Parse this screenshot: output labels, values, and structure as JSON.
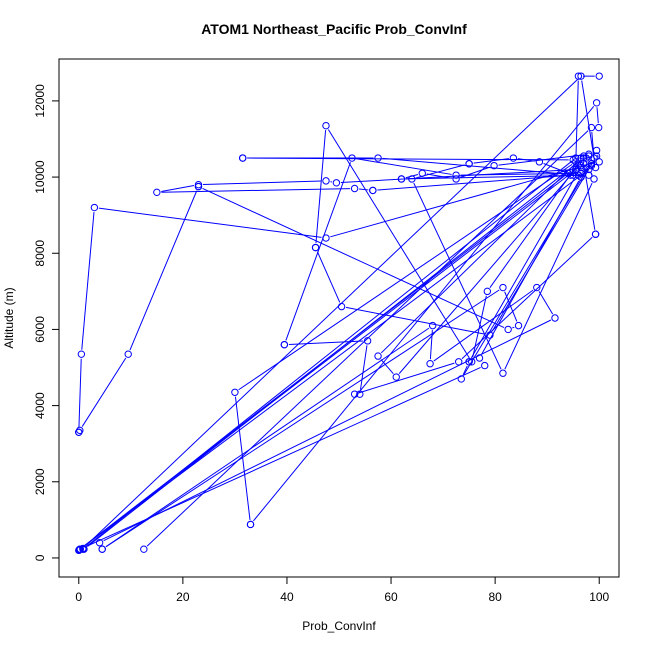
{
  "chart_data": {
    "type": "line",
    "title": "ATOM1 Northeast_Pacific Prob_ConvInf",
    "xlabel": "Prob_ConvInf",
    "ylabel": "Altitude (m)",
    "xlim": [
      -3.8,
      103.8
    ],
    "ylim": [
      -500,
      13100
    ],
    "xticks": [
      0,
      20,
      40,
      60,
      80,
      100
    ],
    "yticks": [
      0,
      2000,
      4000,
      6000,
      8000,
      10000,
      12000
    ],
    "grid": false,
    "legend": "none",
    "colors": {
      "series": "#0000ff",
      "axis": "#000000"
    },
    "series": [
      {
        "x": [
          0.8,
          96.5,
          99.3
        ],
        "y": [
          250,
          12650,
          10250
        ]
      },
      {
        "x": [
          100,
          96,
          95.5,
          30,
          33
        ],
        "y": [
          12650,
          12650,
          10400,
          4350,
          880
        ]
      },
      {
        "x": [
          33,
          99.5,
          99.9
        ],
        "y": [
          880,
          11950,
          11300
        ]
      },
      {
        "x": [
          12.5,
          98.5,
          99,
          73.5,
          75
        ],
        "y": [
          230,
          11300,
          10500,
          4700,
          5150
        ]
      },
      {
        "x": [
          75,
          97.5,
          98
        ],
        "y": [
          5150,
          10500,
          10550
        ]
      },
      {
        "x": [
          0,
          96.5,
          100,
          99.5
        ],
        "y": [
          200,
          10300,
          10400,
          10700
        ]
      },
      {
        "x": [
          1,
          97,
          99.5,
          79,
          50.5,
          45.5
        ],
        "y": [
          230,
          10500,
          10550,
          5850,
          6600,
          8150
        ]
      },
      {
        "x": [
          45.5,
          47.5,
          75.5,
          78.5,
          97
        ],
        "y": [
          8150,
          11350,
          5150,
          7000,
          10550
        ]
      },
      {
        "x": [
          0.2,
          98,
          99,
          81.5,
          64,
          75
        ],
        "y": [
          230,
          10200,
          9950,
          4850,
          9950,
          10350
        ]
      },
      {
        "x": [
          75,
          83.5,
          88.5,
          95
        ],
        "y": [
          10350,
          10500,
          10400,
          10050
        ]
      },
      {
        "x": [
          0.8,
          95.5,
          98,
          79.8,
          72.5,
          66,
          62
        ],
        "y": [
          230,
          10500,
          10600,
          10300,
          9950,
          10100,
          9950
        ]
      },
      {
        "x": [
          62,
          98,
          96.5
        ],
        "y": [
          9950,
          10050,
          10000
        ]
      },
      {
        "x": [
          0.1,
          94,
          97,
          99.3
        ],
        "y": [
          220,
          10100,
          10350,
          8500
        ]
      },
      {
        "x": [
          99.3,
          73,
          53,
          54,
          55.5,
          39.5
        ],
        "y": [
          8500,
          5150,
          4300,
          4300,
          5700,
          5600
        ]
      },
      {
        "x": [
          39.5,
          52.5,
          72.5,
          96.5
        ],
        "y": [
          5600,
          10500,
          10050,
          10100
        ]
      },
      {
        "x": [
          0.3,
          78,
          77,
          96.5,
          98.5,
          96
        ],
        "y": [
          230,
          5050,
          5250,
          10000,
          10300,
          10050
        ]
      },
      {
        "x": [
          96,
          57.5,
          31.5
        ],
        "y": [
          10050,
          10500,
          10500
        ]
      },
      {
        "x": [
          31.5,
          95,
          96.5,
          57.5,
          61,
          95.5
        ],
        "y": [
          10500,
          10450,
          10500,
          5300,
          4750,
          10200
        ]
      },
      {
        "x": [
          95.5,
          49.5,
          47.5,
          23,
          15,
          53,
          56.5
        ],
        "y": [
          10200,
          9850,
          9900,
          9800,
          9600,
          9700,
          9650
        ]
      },
      {
        "x": [
          56.5,
          94.5,
          96.5,
          98.5
        ],
        "y": [
          9650,
          10050,
          10250,
          10350
        ]
      },
      {
        "x": [
          98.5,
          47.5,
          3,
          0.5,
          0
        ],
        "y": [
          10350,
          8400,
          9200,
          5350,
          3300
        ]
      },
      {
        "x": [
          0,
          0.2,
          9.5,
          23
        ],
        "y": [
          3300,
          3350,
          5350,
          9750
        ]
      },
      {
        "x": [
          23,
          82.5,
          84.5,
          81.5,
          4.5
        ],
        "y": [
          9750,
          6000,
          6100,
          7100,
          230
        ]
      },
      {
        "x": [
          4.5,
          68,
          67.5,
          88,
          91.5,
          4
        ],
        "y": [
          230,
          6100,
          5100,
          7100,
          6300,
          400
        ]
      }
    ]
  }
}
